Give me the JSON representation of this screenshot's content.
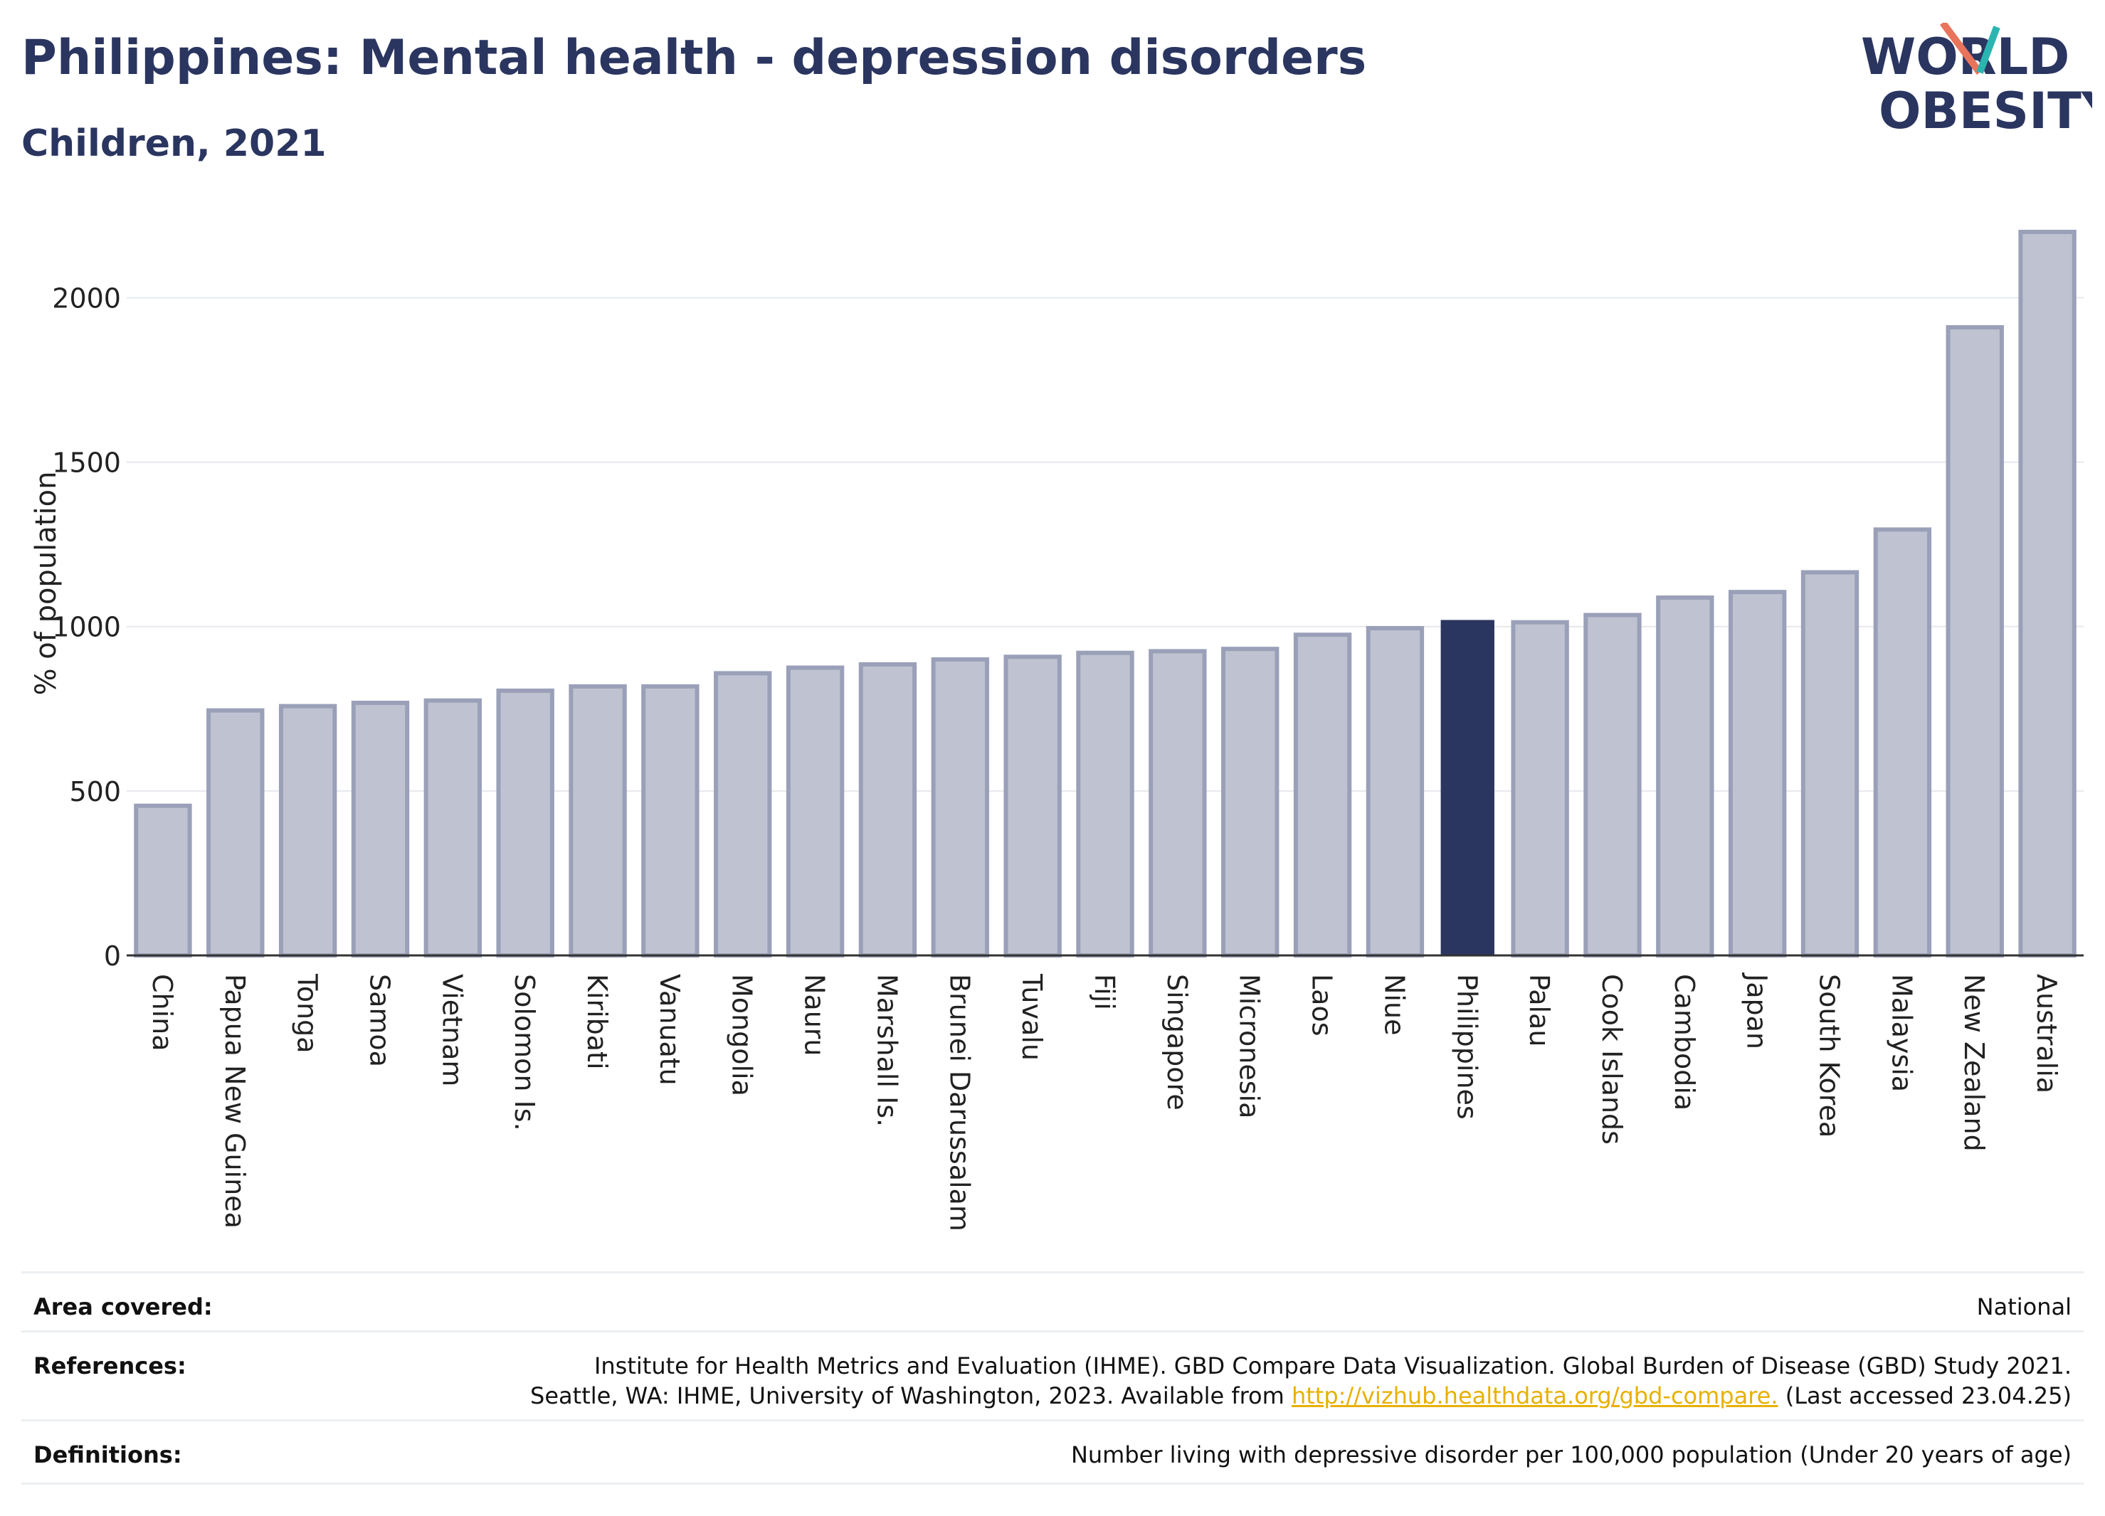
{
  "header": {
    "title": "Philippines: Mental health - depression disorders",
    "subtitle": "Children, 2021",
    "logo_line1": "WORLD",
    "logo_line2": "OBESITY"
  },
  "colors": {
    "highlight": "#2a3560",
    "bar": "#bfc3d1",
    "bar_border": "#9aa0b8",
    "grid": "#e6e8ee",
    "logo_teal": "#2bb5b0",
    "logo_coral": "#e8745c"
  },
  "chart_data": {
    "type": "bar",
    "ylabel": "% of population",
    "ylim": [
      0,
      2200
    ],
    "yticks": [
      0,
      500,
      1000,
      1500,
      2000
    ],
    "grid": true,
    "highlight": "Philippines",
    "categories": [
      "China",
      "Papua New Guinea",
      "Tonga",
      "Samoa",
      "Vietnam",
      "Solomon Is.",
      "Kiribati",
      "Vanuatu",
      "Mongolia",
      "Nauru",
      "Marshall Is.",
      "Brunei Darussalam",
      "Tuvalu",
      "Fiji",
      "Singapore",
      "Micronesia",
      "Laos",
      "Niue",
      "Philippines",
      "Palau",
      "Cook Islands",
      "Cambodia",
      "Japan",
      "South Korea",
      "Malaysia",
      "New Zealand",
      "Australia"
    ],
    "values": [
      455,
      745,
      758,
      768,
      775,
      805,
      818,
      818,
      858,
      875,
      885,
      900,
      908,
      920,
      925,
      932,
      975,
      995,
      1020,
      1013,
      1035,
      1088,
      1105,
      1165,
      1295,
      1910,
      2200
    ]
  },
  "footer": {
    "area_label": "Area covered:",
    "area_value": "National",
    "references_label": "References:",
    "references_line1": "Institute for Health Metrics and Evaluation (IHME). GBD Compare Data Visualization. Global Burden of Disease (GBD) Study 2021.",
    "references_line2_prefix": "Seattle, WA: IHME, University of Washington, 2023. Available from",
    "references_link": "http://vizhub.healthdata.org/gbd-compare.",
    "references_line2_suffix": "(Last accessed 23.04.25)",
    "definitions_label": "Definitions:",
    "definitions_value": "Number living with depressive disorder per 100,000 population (Under 20 years of age)"
  }
}
